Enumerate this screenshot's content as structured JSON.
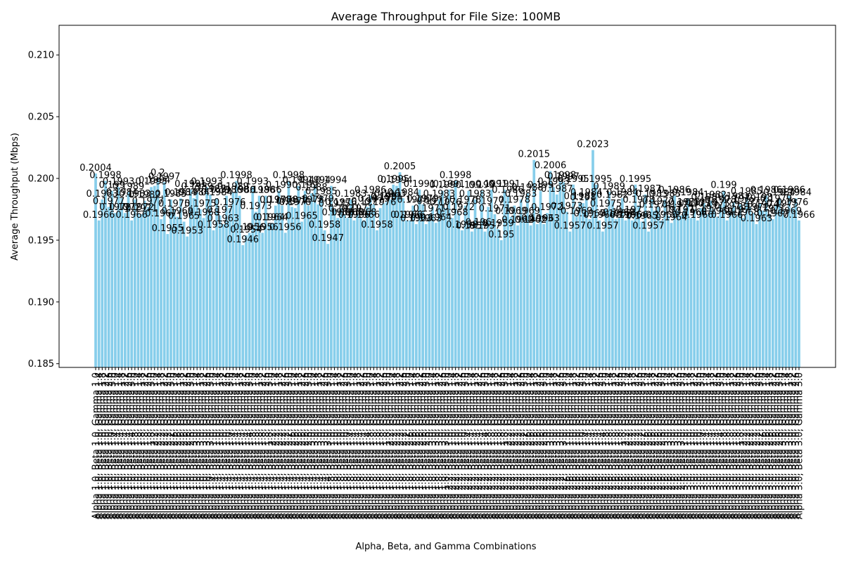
{
  "chart_data": {
    "type": "bar",
    "title": "Average Throughput for File Size: 100MB",
    "x_label": "Alpha, Beta, and Gamma Combinations",
    "y_label": "Average Throughput (Mbps)",
    "color": "#87ceeb",
    "ylim": [
      0.1847,
      0.2124
    ],
    "yticks": [
      0.185,
      {
        "value": 0.19,
        "label": "0.190"
      },
      0.195,
      {
        "value": 0.2,
        "label": "0.200"
      },
      0.205,
      {
        "value": 0.21,
        "label": "0.210"
      }
    ],
    "categories": [
      "Alpha 1.0, Beta 1.0, Gamma 1.0",
      "Alpha 1.0, Beta 1.0, Gamma 1.4",
      "Alpha 1.0, Beta 1.0, Gamma 1.8",
      "Alpha 1.0, Beta 1.0, Gamma 2.2",
      "Alpha 1.0, Beta 1.0, Gamma 2.6",
      "Alpha 1.0, Beta 1.0, Gamma 3.0",
      "Alpha 1.0, Beta 1.4, Gamma 1.0",
      "Alpha 1.0, Beta 1.4, Gamma 1.4",
      "Alpha 1.0, Beta 1.4, Gamma 1.8",
      "Alpha 1.0, Beta 1.4, Gamma 2.2",
      "Alpha 1.0, Beta 1.4, Gamma 2.6",
      "Alpha 1.0, Beta 1.4, Gamma 3.0",
      "Alpha 1.0, Beta 1.8, Gamma 1.0",
      "Alpha 1.0, Beta 1.8, Gamma 1.4",
      "Alpha 1.0, Beta 1.8, Gamma 1.8",
      "Alpha 1.0, Beta 1.8, Gamma 2.2",
      "Alpha 1.0, Beta 1.8, Gamma 2.6",
      "Alpha 1.0, Beta 1.8, Gamma 3.0",
      "Alpha 1.0, Beta 2.2, Gamma 1.0",
      "Alpha 1.0, Beta 2.2, Gamma 1.4",
      "Alpha 1.0, Beta 2.2, Gamma 1.8",
      "Alpha 1.0, Beta 2.2, Gamma 2.2",
      "Alpha 1.0, Beta 2.2, Gamma 2.6",
      "Alpha 1.0, Beta 2.2, Gamma 3.0",
      "Alpha 1.0, Beta 2.6, Gamma 1.0",
      "Alpha 1.0, Beta 2.6, Gamma 1.4",
      "Alpha 1.0, Beta 2.6, Gamma 1.8",
      "Alpha 1.0, Beta 2.6, Gamma 2.2",
      "Alpha 1.0, Beta 2.6, Gamma 2.6",
      "Alpha 1.0, Beta 2.6, Gamma 3.0",
      "Alpha 1.0, Beta 3.0, Gamma 1.0",
      "Alpha 1.0, Beta 3.0, Gamma 1.4",
      "Alpha 1.0, Beta 3.0, Gamma 1.8",
      "Alpha 1.0, Beta 3.0, Gamma 2.2",
      "Alpha 1.0, Beta 3.0, Gamma 2.6",
      "Alpha 1.0, Beta 3.0, Gamma 3.0",
      "Alpha 1.4, Beta 1.0, Gamma 1.0",
      "Alpha 1.4, Beta 1.0, Gamma 1.4",
      "Alpha 1.4, Beta 1.0, Gamma 1.8",
      "Alpha 1.4, Beta 1.0, Gamma 2.2",
      "Alpha 1.4, Beta 1.0, Gamma 2.6",
      "Alpha 1.4, Beta 1.0, Gamma 3.0",
      "Alpha 1.4, Beta 1.4, Gamma 1.0",
      "Alpha 1.4, Beta 1.4, Gamma 1.4",
      "Alpha 1.4, Beta 1.4, Gamma 1.8",
      "Alpha 1.4, Beta 1.4, Gamma 2.2",
      "Alpha 1.4, Beta 1.4, Gamma 2.6",
      "Alpha 1.4, Beta 1.4, Gamma 3.0",
      "Alpha 1.4, Beta 1.8, Gamma 1.0",
      "Alpha 1.4, Beta 1.8, Gamma 1.4",
      "Alpha 1.4, Beta 1.8, Gamma 1.8",
      "Alpha 1.4, Beta 1.8, Gamma 2.2",
      "Alpha 1.4, Beta 1.8, Gamma 2.6",
      "Alpha 1.4, Beta 1.8, Gamma 3.0",
      "Alpha 1.4, Beta 2.2, Gamma 1.0",
      "Alpha 1.4, Beta 2.2, Gamma 1.4",
      "Alpha 1.4, Beta 2.2, Gamma 1.8",
      "Alpha 1.4, Beta 2.2, Gamma 2.2",
      "Alpha 1.4, Beta 2.2, Gamma 2.6",
      "Alpha 1.4, Beta 2.2, Gamma 3.0",
      "Alpha 1.4, Beta 2.6, Gamma 1.0",
      "Alpha 1.4, Beta 2.6, Gamma 1.4",
      "Alpha 1.4, Beta 2.6, Gamma 1.8",
      "Alpha 1.4, Beta 2.6, Gamma 2.2",
      "Alpha 1.4, Beta 2.6, Gamma 2.6",
      "Alpha 1.4, Beta 2.6, Gamma 3.0",
      "Alpha 1.4, Beta 3.0, Gamma 1.0",
      "Alpha 1.4, Beta 3.0, Gamma 1.4",
      "Alpha 1.4, Beta 3.0, Gamma 1.8",
      "Alpha 1.4, Beta 3.0, Gamma 2.2",
      "Alpha 1.4, Beta 3.0, Gamma 2.6",
      "Alpha 1.4, Beta 3.0, Gamma 3.0",
      "Alpha 1.8, Beta 1.0, Gamma 1.0",
      "Alpha 1.8, Beta 1.0, Gamma 1.4",
      "Alpha 1.8, Beta 1.0, Gamma 1.8",
      "Alpha 1.8, Beta 1.0, Gamma 2.2",
      "Alpha 1.8, Beta 1.0, Gamma 2.6",
      "Alpha 1.8, Beta 1.0, Gamma 3.0",
      "Alpha 1.8, Beta 1.4, Gamma 1.0",
      "Alpha 1.8, Beta 1.4, Gamma 1.4",
      "Alpha 1.8, Beta 1.4, Gamma 1.8",
      "Alpha 1.8, Beta 1.4, Gamma 2.2",
      "Alpha 1.8, Beta 1.4, Gamma 2.6",
      "Alpha 1.8, Beta 1.4, Gamma 3.0",
      "Alpha 1.8, Beta 1.8, Gamma 1.0",
      "Alpha 1.8, Beta 1.8, Gamma 1.4",
      "Alpha 1.8, Beta 1.8, Gamma 1.8",
      "Alpha 1.8, Beta 1.8, Gamma 2.2",
      "Alpha 1.8, Beta 1.8, Gamma 2.6",
      "Alpha 1.8, Beta 1.8, Gamma 3.0",
      "Alpha 1.8, Beta 2.2, Gamma 1.0",
      "Alpha 1.8, Beta 2.2, Gamma 1.4",
      "Alpha 1.8, Beta 2.2, Gamma 1.8",
      "Alpha 1.8, Beta 2.2, Gamma 2.2",
      "Alpha 1.8, Beta 2.2, Gamma 2.6",
      "Alpha 1.8, Beta 2.2, Gamma 3.0",
      "Alpha 1.8, Beta 2.6, Gamma 1.0",
      "Alpha 1.8, Beta 2.6, Gamma 1.4",
      "Alpha 1.8, Beta 2.6, Gamma 1.8",
      "Alpha 1.8, Beta 2.6, Gamma 2.2",
      "Alpha 1.8, Beta 2.6, Gamma 2.6",
      "Alpha 1.8, Beta 2.6, Gamma 3.0",
      "Alpha 1.8, Beta 3.0, Gamma 1.0",
      "Alpha 1.8, Beta 3.0, Gamma 1.4",
      "Alpha 1.8, Beta 3.0, Gamma 1.8",
      "Alpha 1.8, Beta 3.0, Gamma 2.2",
      "Alpha 1.8, Beta 3.0, Gamma 2.6",
      "Alpha 1.8, Beta 3.0, Gamma 3.0",
      "Alpha 2.2, Beta 1.0, Gamma 1.0",
      "Alpha 2.2, Beta 1.0, Gamma 1.4",
      "Alpha 2.2, Beta 1.0, Gamma 1.8",
      "Alpha 2.2, Beta 1.0, Gamma 2.2",
      "Alpha 2.2, Beta 1.0, Gamma 2.6",
      "Alpha 2.2, Beta 1.0, Gamma 3.0",
      "Alpha 2.2, Beta 1.4, Gamma 1.0",
      "Alpha 2.2, Beta 1.4, Gamma 1.4",
      "Alpha 2.2, Beta 1.4, Gamma 1.8",
      "Alpha 2.2, Beta 1.4, Gamma 2.2",
      "Alpha 2.2, Beta 1.4, Gamma 2.6",
      "Alpha 2.2, Beta 1.4, Gamma 3.0",
      "Alpha 2.2, Beta 1.8, Gamma 1.0",
      "Alpha 2.2, Beta 1.8, Gamma 1.4",
      "Alpha 2.2, Beta 1.8, Gamma 1.8",
      "Alpha 2.2, Beta 1.8, Gamma 2.2",
      "Alpha 2.2, Beta 1.8, Gamma 2.6",
      "Alpha 2.2, Beta 1.8, Gamma 3.0",
      "Alpha 2.2, Beta 2.2, Gamma 1.0",
      "Alpha 2.2, Beta 2.2, Gamma 1.4",
      "Alpha 2.2, Beta 2.2, Gamma 1.8",
      "Alpha 2.2, Beta 2.2, Gamma 2.2",
      "Alpha 2.2, Beta 2.2, Gamma 2.6",
      "Alpha 2.2, Beta 2.2, Gamma 3.0",
      "Alpha 2.2, Beta 2.6, Gamma 1.0",
      "Alpha 2.2, Beta 2.6, Gamma 1.4",
      "Alpha 2.2, Beta 2.6, Gamma 1.8",
      "Alpha 2.2, Beta 2.6, Gamma 2.2",
      "Alpha 2.2, Beta 2.6, Gamma 2.6",
      "Alpha 2.2, Beta 2.6, Gamma 3.0",
      "Alpha 2.2, Beta 3.0, Gamma 1.0",
      "Alpha 2.2, Beta 3.0, Gamma 1.4",
      "Alpha 2.2, Beta 3.0, Gamma 1.8",
      "Alpha 2.2, Beta 3.0, Gamma 2.2",
      "Alpha 2.2, Beta 3.0, Gamma 2.6",
      "Alpha 2.2, Beta 3.0, Gamma 3.0",
      "Alpha 2.6, Beta 1.0, Gamma 1.0",
      "Alpha 2.6, Beta 1.0, Gamma 1.4",
      "Alpha 2.6, Beta 1.0, Gamma 1.8",
      "Alpha 2.6, Beta 1.0, Gamma 2.2",
      "Alpha 2.6, Beta 1.0, Gamma 2.6",
      "Alpha 2.6, Beta 1.0, Gamma 3.0",
      "Alpha 2.6, Beta 1.4, Gamma 1.0",
      "Alpha 2.6, Beta 1.4, Gamma 1.4",
      "Alpha 2.6, Beta 1.4, Gamma 1.8",
      "Alpha 2.6, Beta 1.4, Gamma 2.2",
      "Alpha 2.6, Beta 1.4, Gamma 2.6",
      "Alpha 2.6, Beta 1.4, Gamma 3.0",
      "Alpha 2.6, Beta 1.8, Gamma 1.0",
      "Alpha 2.6, Beta 1.8, Gamma 1.4",
      "Alpha 2.6, Beta 1.8, Gamma 1.8",
      "Alpha 2.6, Beta 1.8, Gamma 2.2",
      "Alpha 2.6, Beta 1.8, Gamma 2.6",
      "Alpha 2.6, Beta 1.8, Gamma 3.0",
      "Alpha 2.6, Beta 2.2, Gamma 1.0",
      "Alpha 2.6, Beta 2.2, Gamma 1.4",
      "Alpha 2.6, Beta 2.2, Gamma 1.8",
      "Alpha 2.6, Beta 2.2, Gamma 2.2",
      "Alpha 2.6, Beta 2.2, Gamma 2.6",
      "Alpha 2.6, Beta 2.2, Gamma 3.0",
      "Alpha 2.6, Beta 2.6, Gamma 1.0",
      "Alpha 2.6, Beta 2.6, Gamma 1.4",
      "Alpha 2.6, Beta 2.6, Gamma 1.8",
      "Alpha 2.6, Beta 2.6, Gamma 2.2",
      "Alpha 2.6, Beta 2.6, Gamma 2.6",
      "Alpha 2.6, Beta 2.6, Gamma 3.0",
      "Alpha 2.6, Beta 3.0, Gamma 1.0",
      "Alpha 2.6, Beta 3.0, Gamma 1.4",
      "Alpha 2.6, Beta 3.0, Gamma 1.8",
      "Alpha 2.6, Beta 3.0, Gamma 2.2",
      "Alpha 2.6, Beta 3.0, Gamma 2.6",
      "Alpha 2.6, Beta 3.0, Gamma 3.0",
      "Alpha 3.0, Beta 1.0, Gamma 1.0",
      "Alpha 3.0, Beta 1.0, Gamma 1.4",
      "Alpha 3.0, Beta 1.0, Gamma 1.8",
      "Alpha 3.0, Beta 1.0, Gamma 2.2",
      "Alpha 3.0, Beta 1.0, Gamma 2.6",
      "Alpha 3.0, Beta 1.0, Gamma 3.0",
      "Alpha 3.0, Beta 1.4, Gamma 1.0",
      "Alpha 3.0, Beta 1.4, Gamma 1.4",
      "Alpha 3.0, Beta 1.4, Gamma 1.8",
      "Alpha 3.0, Beta 1.4, Gamma 2.2",
      "Alpha 3.0, Beta 1.4, Gamma 2.6",
      "Alpha 3.0, Beta 1.4, Gamma 3.0",
      "Alpha 3.0, Beta 1.8, Gamma 1.0",
      "Alpha 3.0, Beta 1.8, Gamma 1.4",
      "Alpha 3.0, Beta 1.8, Gamma 1.8",
      "Alpha 3.0, Beta 1.8, Gamma 2.2",
      "Alpha 3.0, Beta 1.8, Gamma 2.6",
      "Alpha 3.0, Beta 1.8, Gamma 3.0",
      "Alpha 3.0, Beta 2.2, Gamma 1.0",
      "Alpha 3.0, Beta 2.2, Gamma 1.4",
      "Alpha 3.0, Beta 2.2, Gamma 1.8",
      "Alpha 3.0, Beta 2.2, Gamma 2.2",
      "Alpha 3.0, Beta 2.2, Gamma 2.6",
      "Alpha 3.0, Beta 2.2, Gamma 3.0",
      "Alpha 3.0, Beta 2.6, Gamma 1.0",
      "Alpha 3.0, Beta 2.6, Gamma 1.4",
      "Alpha 3.0, Beta 2.6, Gamma 1.8",
      "Alpha 3.0, Beta 2.6, Gamma 2.2",
      "Alpha 3.0, Beta 2.6, Gamma 2.6",
      "Alpha 3.0, Beta 2.6, Gamma 3.0",
      "Alpha 3.0, Beta 3.0, Gamma 1.0",
      "Alpha 3.0, Beta 3.0, Gamma 1.4",
      "Alpha 3.0, Beta 3.0, Gamma 1.8",
      "Alpha 3.0, Beta 3.0, Gamma 2.2",
      "Alpha 3.0, Beta 3.0, Gamma 2.6",
      "Alpha 3.0, Beta 3.0, Gamma 3.0"
    ],
    "values": [
      0.2004,
      0.1966,
      0.1983,
      0.1998,
      0.1977,
      0.199,
      0.1972,
      0.1993,
      0.1984,
      0.1972,
      0.1989,
      0.1966,
      0.1983,
      0.1972,
      0.1971,
      0.1982,
      0.1977,
      0.1993,
      0.1994,
      0.2,
      0.1967,
      0.1997,
      0.1955,
      0.1983,
      0.1975,
      0.1969,
      0.1984,
      0.1965,
      0.1953,
      0.1991,
      0.1984,
      0.1989,
      0.1975,
      0.1968,
      0.1993,
      0.1987,
      0.1958,
      0.1984,
      0.197,
      0.1963,
      0.1986,
      0.1976,
      0.1989,
      0.1998,
      0.1986,
      0.1946,
      0.1954,
      0.1956,
      0.1993,
      0.1973,
      0.1986,
      0.1956,
      0.1986,
      0.1964,
      0.1964,
      0.1978,
      0.199,
      0.1978,
      0.1956,
      0.1998,
      0.1977,
      0.1976,
      0.1994,
      0.1965,
      0.199,
      0.1978,
      0.1988,
      0.1994,
      0.1979,
      0.1985,
      0.1958,
      0.1947,
      0.1994,
      0.1975,
      0.1968,
      0.1976,
      0.1971,
      0.1968,
      0.1983,
      0.1966,
      0.1971,
      0.1968,
      0.1966,
      0.1977,
      0.1986,
      0.1979,
      0.1958,
      0.1976,
      0.198,
      0.1981,
      0.1983,
      0.1995,
      0.1994,
      0.2005,
      0.1984,
      0.1966,
      0.1966,
      0.1978,
      0.1963,
      0.1991,
      0.1979,
      0.1963,
      0.1971,
      0.1977,
      0.1964,
      0.1983,
      0.199,
      0.1976,
      0.1991,
      0.1968,
      0.1998,
      0.1972,
      0.1958,
      0.1978,
      0.199,
      0.1957,
      0.1983,
      0.196,
      0.199,
      0.1957,
      0.1977,
      0.1991,
      0.1971,
      0.1959,
      0.195,
      0.1991,
      0.1986,
      0.1969,
      0.1978,
      0.1962,
      0.1983,
      0.1969,
      0.1988,
      0.1962,
      0.2015,
      0.1963,
      0.199,
      0.1963,
      0.1972,
      0.2006,
      0.1993,
      0.1987,
      0.1998,
      0.1997,
      0.1973,
      0.1957,
      0.1995,
      0.1969,
      0.1981,
      0.198,
      0.1984,
      0.1967,
      0.2023,
      0.1995,
      0.1966,
      0.1957,
      0.1975,
      0.1989,
      0.1982,
      0.1967,
      0.1968,
      0.1984,
      0.1966,
      0.197,
      0.1966,
      0.1995,
      0.1978,
      0.1965,
      0.1987,
      0.1957,
      0.1983,
      0.1974,
      0.1977,
      0.1966,
      0.1983,
      0.197,
      0.1964,
      0.1986,
      0.1974,
      0.197,
      0.1976,
      0.1984,
      0.1968,
      0.1975,
      0.1966,
      0.1976,
      0.198,
      0.1971,
      0.1982,
      0.1975,
      0.1969,
      0.1978,
      0.199,
      0.1966,
      0.1973,
      0.1981,
      0.197,
      0.1979,
      0.1968,
      0.1985,
      0.1977,
      0.1972,
      0.1963,
      0.198,
      0.1974,
      0.1986,
      0.1971,
      0.1967,
      0.1979,
      0.1984,
      0.1975,
      0.1969,
      0.1986,
      0.1976,
      0.1984,
      0.1966
    ]
  }
}
